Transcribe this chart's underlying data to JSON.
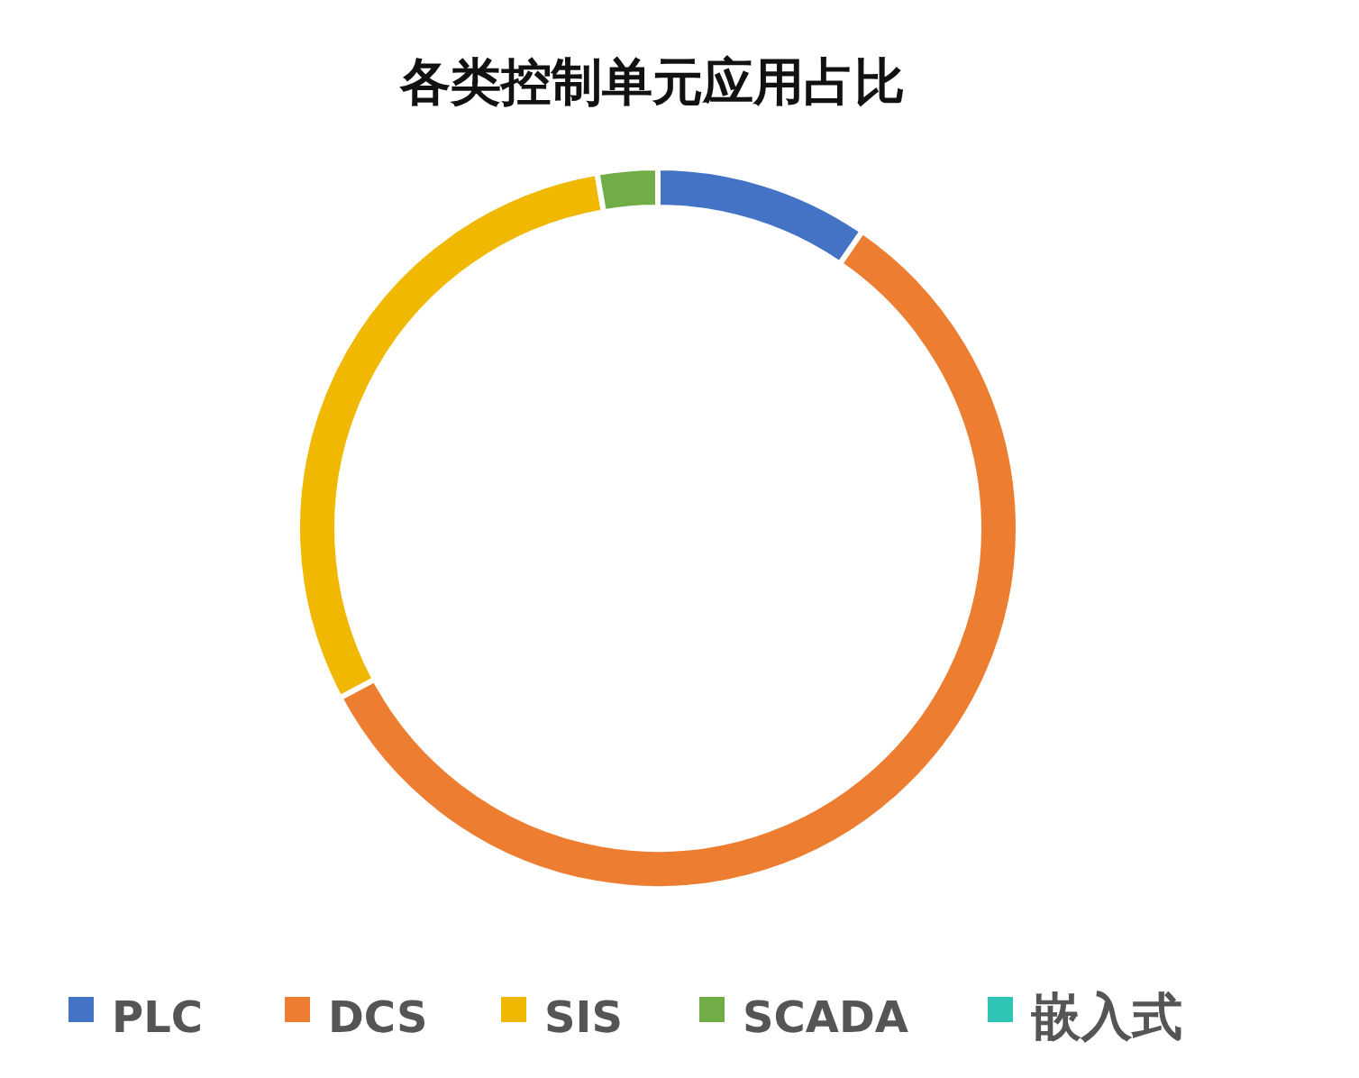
{
  "chart_data": {
    "type": "donut",
    "title": "各类控制单元应用占比",
    "categories": [
      "PLC",
      "DCS",
      "SIS",
      "SCADA",
      "嵌入式"
    ],
    "values": [
      9.6,
      57.6,
      30.1,
      2.7,
      0
    ],
    "colors": [
      "#4472c4",
      "#ed7d31",
      "#f0b800",
      "#70ad47",
      "#2ec4b6"
    ],
    "legend": "bottom"
  }
}
